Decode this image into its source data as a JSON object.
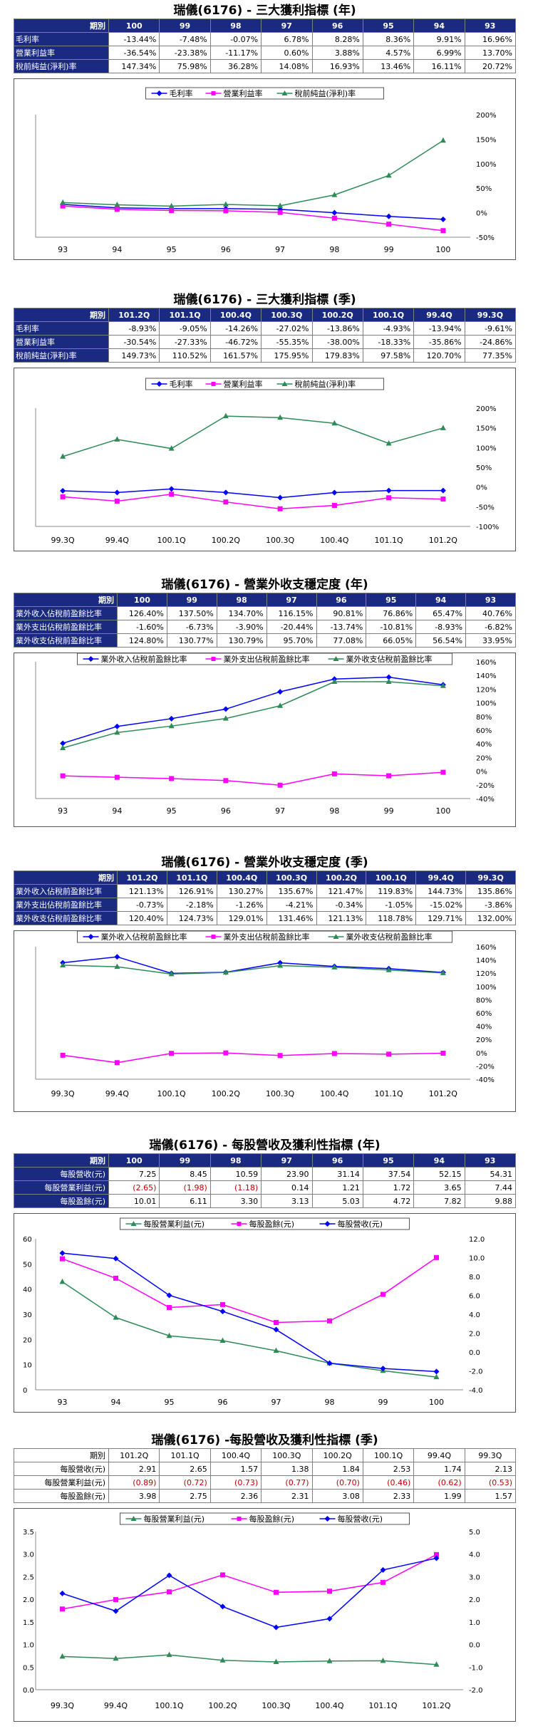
{
  "colors": {
    "blue": "#0000ff",
    "magenta": "#ff00ff",
    "green": "#2e8b57",
    "header_bg": "#1a2a80"
  },
  "sections": [
    {
      "title": "瑞儀(6176) - 三大獲利指標 (年)",
      "table": {
        "style": "dark-left",
        "header_label": "期別",
        "columns": [
          "100",
          "99",
          "98",
          "97",
          "96",
          "95",
          "94",
          "93"
        ],
        "rows": [
          {
            "label": "毛利率",
            "values": [
              "-13.44%",
              "-7.48%",
              "-0.07%",
              "6.78%",
              "8.28%",
              "8.36%",
              "9.91%",
              "16.96%"
            ]
          },
          {
            "label": "營業利益率",
            "values": [
              "-36.54%",
              "-23.38%",
              "-11.17%",
              "0.60%",
              "3.88%",
              "4.57%",
              "6.99%",
              "13.70%"
            ]
          },
          {
            "label": "稅前純益(淨利)率",
            "values": [
              "147.34%",
              "75.98%",
              "36.28%",
              "14.08%",
              "16.93%",
              "13.46%",
              "16.11%",
              "20.72%"
            ]
          }
        ]
      },
      "chart_data": {
        "type": "line",
        "categories": [
          "93",
          "94",
          "95",
          "96",
          "97",
          "98",
          "99",
          "100"
        ],
        "series": [
          {
            "name": "毛利率",
            "marker": "diamond",
            "color": "#0000ff",
            "axis": "right",
            "values": [
              16.96,
              9.91,
              8.36,
              8.28,
              6.78,
              -0.07,
              -7.48,
              -13.44
            ]
          },
          {
            "name": "營業利益率",
            "marker": "square",
            "color": "#ff00ff",
            "axis": "right",
            "values": [
              13.7,
              6.99,
              4.57,
              3.88,
              0.6,
              -11.17,
              -23.38,
              -36.54
            ]
          },
          {
            "name": "稅前純益(淨利)率",
            "marker": "triangle",
            "color": "#2e8b57",
            "axis": "right",
            "values": [
              20.72,
              16.11,
              13.46,
              16.93,
              14.08,
              36.28,
              75.98,
              147.34
            ]
          }
        ],
        "right_axis": {
          "min": -50,
          "max": 200,
          "step": 50,
          "suffix": "%"
        },
        "legend": "top-center",
        "grid": false
      }
    },
    {
      "title": "瑞儀(6176) - 三大獲利指標 (季)",
      "table": {
        "style": "dark-left",
        "header_label": "期別",
        "columns": [
          "101.2Q",
          "101.1Q",
          "100.4Q",
          "100.3Q",
          "100.2Q",
          "100.1Q",
          "99.4Q",
          "99.3Q"
        ],
        "rows": [
          {
            "label": "毛利率",
            "values": [
              "-8.93%",
              "-9.05%",
              "-14.26%",
              "-27.02%",
              "-13.86%",
              "-4.93%",
              "-13.94%",
              "-9.61%"
            ]
          },
          {
            "label": "營業利益率",
            "values": [
              "-30.54%",
              "-27.33%",
              "-46.72%",
              "-55.35%",
              "-38.00%",
              "-18.33%",
              "-35.86%",
              "-24.86%"
            ]
          },
          {
            "label": "稅前純益(淨利)率",
            "values": [
              "149.73%",
              "110.52%",
              "161.57%",
              "175.95%",
              "179.83%",
              "97.58%",
              "120.70%",
              "77.35%"
            ]
          }
        ]
      },
      "chart_data": {
        "type": "line",
        "categories": [
          "99.3Q",
          "99.4Q",
          "100.1Q",
          "100.2Q",
          "100.3Q",
          "100.4Q",
          "101.1Q",
          "101.2Q"
        ],
        "series": [
          {
            "name": "毛利率",
            "marker": "diamond",
            "color": "#0000ff",
            "axis": "right",
            "values": [
              -9.61,
              -13.94,
              -4.93,
              -13.86,
              -27.02,
              -14.26,
              -9.05,
              -8.93
            ]
          },
          {
            "name": "營業利益率",
            "marker": "square",
            "color": "#ff00ff",
            "axis": "right",
            "values": [
              -24.86,
              -35.86,
              -18.33,
              -38.0,
              -55.35,
              -46.72,
              -27.33,
              -30.54
            ]
          },
          {
            "name": "稅前純益(淨利)率",
            "marker": "triangle",
            "color": "#2e8b57",
            "axis": "right",
            "values": [
              77.35,
              120.7,
              97.58,
              179.83,
              175.95,
              161.57,
              110.52,
              149.73
            ]
          }
        ],
        "right_axis": {
          "min": -100,
          "max": 200,
          "step": 50,
          "suffix": "%"
        },
        "legend": "top-center",
        "grid": false
      }
    },
    {
      "title": "瑞儀(6176) - 營業外收支穩定度 (年)",
      "table": {
        "style": "dark-left",
        "header_label": "期別",
        "columns": [
          "100",
          "99",
          "98",
          "97",
          "96",
          "95",
          "94",
          "93"
        ],
        "rows": [
          {
            "label": "業外收入佔稅前盈餘比率",
            "values": [
              "126.40%",
              "137.50%",
              "134.70%",
              "116.15%",
              "90.81%",
              "76.86%",
              "65.47%",
              "40.76%"
            ]
          },
          {
            "label": "業外支出佔稅前盈餘比率",
            "values": [
              "-1.60%",
              "-6.73%",
              "-3.90%",
              "-20.44%",
              "-13.74%",
              "-10.81%",
              "-8.93%",
              "-6.82%"
            ]
          },
          {
            "label": "業外收支佔稅前盈餘比率",
            "values": [
              "124.80%",
              "130.77%",
              "130.79%",
              "95.70%",
              "77.08%",
              "66.05%",
              "56.54%",
              "33.95%"
            ]
          }
        ]
      },
      "chart_data": {
        "type": "line",
        "categories": [
          "93",
          "94",
          "95",
          "96",
          "97",
          "98",
          "99",
          "100"
        ],
        "series": [
          {
            "name": "業外收入佔稅前盈餘比率",
            "marker": "diamond",
            "color": "#0000ff",
            "axis": "right",
            "values": [
              40.76,
              65.47,
              76.86,
              90.81,
              116.15,
              134.7,
              137.5,
              126.4
            ]
          },
          {
            "name": "業外支出佔稅前盈餘比率",
            "marker": "square",
            "color": "#ff00ff",
            "axis": "right",
            "values": [
              -6.82,
              -8.93,
              -10.81,
              -13.74,
              -20.44,
              -3.9,
              -6.73,
              -1.6
            ]
          },
          {
            "name": "業外收支佔稅前盈餘比率",
            "marker": "triangle",
            "color": "#2e8b57",
            "axis": "right",
            "values": [
              33.95,
              56.54,
              66.05,
              77.08,
              95.7,
              130.79,
              130.77,
              124.8
            ]
          }
        ],
        "right_axis": {
          "min": -40,
          "max": 160,
          "step": 20,
          "suffix": "%"
        },
        "legend": "top-center",
        "grid": false
      }
    },
    {
      "title": "瑞儀(6176) - 營業外收支穩定度 (季)",
      "table": {
        "style": "dark-left",
        "header_label": "期別",
        "columns": [
          "101.2Q",
          "101.1Q",
          "100.4Q",
          "100.3Q",
          "100.2Q",
          "100.1Q",
          "99.4Q",
          "99.3Q"
        ],
        "rows": [
          {
            "label": "業外收入佔稅前盈餘比率",
            "values": [
              "121.13%",
              "126.91%",
              "130.27%",
              "135.67%",
              "121.47%",
              "119.83%",
              "144.73%",
              "135.86%"
            ]
          },
          {
            "label": "業外支出佔稅前盈餘比率",
            "values": [
              "-0.73%",
              "-2.18%",
              "-1.26%",
              "-4.21%",
              "-0.34%",
              "-1.05%",
              "-15.02%",
              "-3.86%"
            ]
          },
          {
            "label": "業外收支佔稅前盈餘比率",
            "values": [
              "120.40%",
              "124.73%",
              "129.01%",
              "131.46%",
              "121.13%",
              "118.78%",
              "129.71%",
              "132.00%"
            ]
          }
        ]
      },
      "chart_data": {
        "type": "line",
        "categories": [
          "99.3Q",
          "99.4Q",
          "100.1Q",
          "100.2Q",
          "100.3Q",
          "100.4Q",
          "101.1Q",
          "101.2Q"
        ],
        "series": [
          {
            "name": "業外收入佔稅前盈餘比率",
            "marker": "diamond",
            "color": "#0000ff",
            "axis": "right",
            "values": [
              135.86,
              144.73,
              119.83,
              121.47,
              135.67,
              130.27,
              126.91,
              121.13
            ]
          },
          {
            "name": "業外支出佔稅前盈餘比率",
            "marker": "square",
            "color": "#ff00ff",
            "axis": "right",
            "values": [
              -3.86,
              -15.02,
              -1.05,
              -0.34,
              -4.21,
              -1.26,
              -2.18,
              -0.73
            ]
          },
          {
            "name": "業外收支佔稅前盈餘比率",
            "marker": "triangle",
            "color": "#2e8b57",
            "axis": "right",
            "values": [
              132.0,
              129.71,
              118.78,
              121.13,
              131.46,
              129.01,
              124.73,
              120.4
            ]
          }
        ],
        "right_axis": {
          "min": -40,
          "max": 160,
          "step": 20,
          "suffix": "%"
        },
        "legend": "top-center",
        "grid": false
      }
    },
    {
      "title": "瑞儀(6176) - 每股營收及獲利性指標 (年)",
      "table": {
        "style": "dark-right",
        "header_label": "期別",
        "columns": [
          "100",
          "99",
          "98",
          "97",
          "96",
          "95",
          "94",
          "93"
        ],
        "rows": [
          {
            "label": "每股營收(元)",
            "values": [
              "7.25",
              "8.45",
              "10.59",
              "23.90",
              "31.14",
              "37.54",
              "52.15",
              "54.31"
            ]
          },
          {
            "label": "每股營業利益(元)",
            "values": [
              "(2.65)",
              "(1.98)",
              "(1.18)",
              "0.14",
              "1.21",
              "1.72",
              "3.65",
              "7.44"
            ]
          },
          {
            "label": "每股盈餘(元)",
            "values": [
              "10.01",
              "6.11",
              "3.30",
              "3.13",
              "5.03",
              "4.72",
              "7.82",
              "9.88"
            ]
          }
        ]
      },
      "chart_data": {
        "type": "line",
        "categories": [
          "93",
          "94",
          "95",
          "96",
          "97",
          "98",
          "99",
          "100"
        ],
        "series": [
          {
            "name": "每股營業利益(元)",
            "marker": "triangle",
            "color": "#2e8b57",
            "axis": "left",
            "values": [
              7.44,
              3.65,
              1.72,
              1.21,
              0.14,
              -1.18,
              -1.98,
              -2.65
            ]
          },
          {
            "name": "每股盈餘(元)",
            "marker": "square",
            "color": "#ff00ff",
            "axis": "left",
            "values": [
              9.88,
              7.82,
              4.72,
              5.03,
              3.13,
              3.3,
              6.11,
              10.01
            ]
          },
          {
            "name": "每股營收(元)",
            "marker": "diamond",
            "color": "#0000ff",
            "axis": "right",
            "values": [
              54.31,
              52.15,
              37.54,
              31.14,
              23.9,
              10.59,
              8.45,
              7.25
            ]
          }
        ],
        "left_axis": {
          "min": -4,
          "max": 12,
          "step": 2,
          "suffix": "",
          "decimals": 1,
          "side": "right"
        },
        "right_axis": {
          "min": 0,
          "max": 60,
          "step": 10,
          "suffix": "",
          "decimals": 0,
          "side": "left"
        },
        "legend": "top-center",
        "grid": false
      }
    },
    {
      "title": "瑞儀(6176) -每股營收及獲利性指標 (季)",
      "table": {
        "style": "light",
        "header_label": "期別",
        "columns": [
          "101.2Q",
          "101.1Q",
          "100.4Q",
          "100.3Q",
          "100.2Q",
          "100.1Q",
          "99.4Q",
          "99.3Q"
        ],
        "rows": [
          {
            "label": "每股營收(元)",
            "values": [
              "2.91",
              "2.65",
              "1.57",
              "1.38",
              "1.84",
              "2.53",
              "1.74",
              "2.13"
            ]
          },
          {
            "label": "每股營業利益(元)",
            "values": [
              "(0.89)",
              "(0.72)",
              "(0.73)",
              "(0.77)",
              "(0.70)",
              "(0.46)",
              "(0.62)",
              "(0.53)"
            ]
          },
          {
            "label": "每股盈餘(元)",
            "values": [
              "3.98",
              "2.75",
              "2.36",
              "2.31",
              "3.08",
              "2.33",
              "1.99",
              "1.57"
            ]
          }
        ]
      },
      "chart_data": {
        "type": "line",
        "categories": [
          "99.3Q",
          "99.4Q",
          "100.1Q",
          "100.2Q",
          "100.3Q",
          "100.4Q",
          "101.1Q",
          "101.2Q"
        ],
        "series": [
          {
            "name": "每股營業利益(元)",
            "marker": "triangle",
            "color": "#2e8b57",
            "axis": "left",
            "values": [
              -0.53,
              -0.62,
              -0.46,
              -0.7,
              -0.77,
              -0.73,
              -0.72,
              -0.89
            ]
          },
          {
            "name": "每股盈餘(元)",
            "marker": "square",
            "color": "#ff00ff",
            "axis": "left",
            "values": [
              1.57,
              1.99,
              2.33,
              3.08,
              2.31,
              2.36,
              2.75,
              3.98
            ]
          },
          {
            "name": "每股營收(元)",
            "marker": "diamond",
            "color": "#0000ff",
            "axis": "right",
            "values": [
              2.13,
              1.74,
              2.53,
              1.84,
              1.38,
              1.57,
              2.65,
              2.91
            ]
          }
        ],
        "left_axis": {
          "min": -2,
          "max": 5,
          "step": 1,
          "suffix": "",
          "decimals": 1,
          "side": "right"
        },
        "right_axis": {
          "min": 0,
          "max": 3.5,
          "step": 0.5,
          "suffix": "",
          "decimals": 1,
          "side": "left"
        },
        "legend": "top-center",
        "grid": false
      }
    }
  ]
}
